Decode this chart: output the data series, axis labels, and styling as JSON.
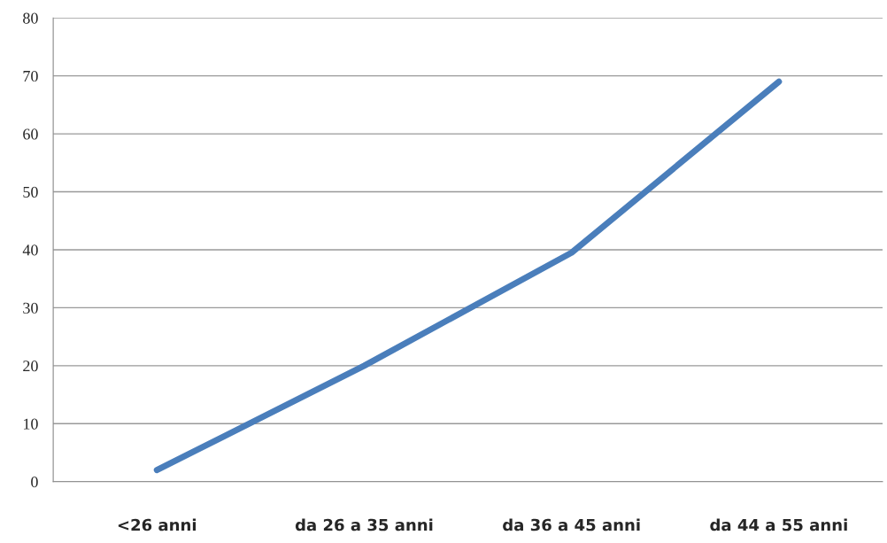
{
  "chart_data": {
    "type": "line",
    "categories": [
      "<26 anni",
      "da 26 a 35 anni",
      "da 36 a 45 anni",
      "da 44 a 55 anni"
    ],
    "series": [
      {
        "color": "#4a7ebb",
        "values": [
          2,
          20,
          39.5,
          69
        ]
      }
    ],
    "ylim": [
      0,
      80
    ],
    "yticks": [
      0,
      10,
      20,
      30,
      40,
      50,
      60,
      70,
      80
    ],
    "grid": "y",
    "marker": "none",
    "line_style": "solid"
  }
}
